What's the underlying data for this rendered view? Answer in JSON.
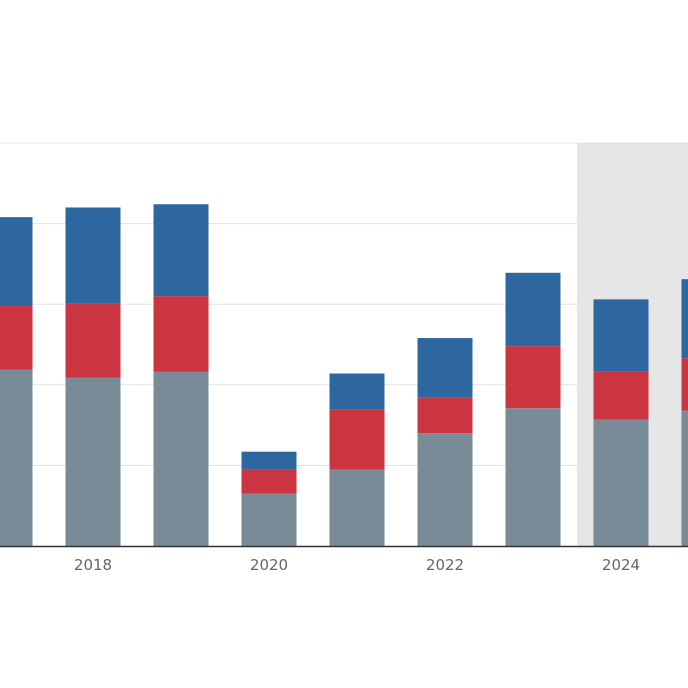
{
  "chart_data": {
    "type": "bar",
    "stacked": true,
    "categories": [
      "2017",
      "2018",
      "2019",
      "2020",
      "2021",
      "2022",
      "2023",
      "2024",
      "2025"
    ],
    "x_tick_labels": [
      "2018",
      "2020",
      "2022",
      "2024"
    ],
    "series": [
      {
        "values": [
          2.19,
          2.09,
          2.16,
          0.65,
          0.95,
          1.4,
          1.71,
          1.57,
          1.68
        ]
      },
      {
        "values": [
          0.8,
          0.92,
          0.94,
          0.3,
          0.74,
          0.44,
          0.77,
          0.6,
          0.65
        ]
      },
      {
        "values": [
          1.09,
          1.19,
          1.14,
          0.22,
          0.45,
          0.74,
          0.91,
          0.89,
          0.98
        ]
      }
    ],
    "ylim": [
      0,
      5
    ],
    "y_gridlines": [
      1,
      2,
      3,
      4,
      5
    ],
    "shaded_region_from": "2024",
    "grid": true,
    "colors": {
      "series": [
        "#7a8b98",
        "#cb3542",
        "#2e67a0"
      ],
      "gridline": "#e3e3e3",
      "axis": "#333333",
      "shaded_region": "#e6e6e6",
      "tick_label": "#666666"
    }
  }
}
